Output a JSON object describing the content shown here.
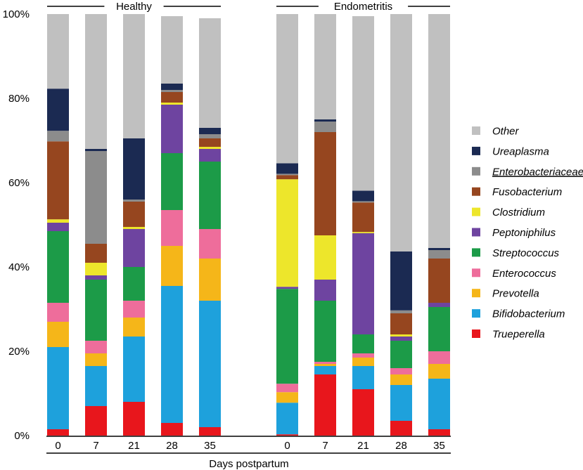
{
  "chart_data": {
    "type": "stacked-bar",
    "title": "",
    "xlabel": "Days postpartum",
    "ylabel": "",
    "ylim": [
      0,
      100
    ],
    "y_ticks": [
      "0%",
      "20%",
      "40%",
      "60%",
      "80%",
      "100%"
    ],
    "groups": [
      {
        "name": "Healthy",
        "categories": [
          "0",
          "7",
          "21",
          "28",
          "35"
        ]
      },
      {
        "name": "Endometritis",
        "categories": [
          "0",
          "7",
          "21",
          "28",
          "35"
        ]
      }
    ],
    "series": [
      {
        "name": "Trueperella",
        "color": "#e8161c",
        "values": [
          1.5,
          7,
          8,
          3,
          2,
          0.3,
          14.5,
          11,
          3.5,
          1.5
        ]
      },
      {
        "name": "Bifidobacterium",
        "color": "#1ea1dc",
        "values": [
          19.5,
          9.5,
          15.5,
          32.5,
          30,
          7.5,
          2,
          5.5,
          8.5,
          12
        ]
      },
      {
        "name": "Prevotella",
        "color": "#f5b619",
        "values": [
          6,
          3,
          4.5,
          9.5,
          10,
          2.5,
          0.5,
          2,
          2.5,
          3.5
        ]
      },
      {
        "name": "Enterococcus",
        "color": "#ee6d9b",
        "values": [
          4.5,
          3,
          4,
          8.5,
          7,
          2,
          0.5,
          1,
          1.5,
          3
        ]
      },
      {
        "name": "Streptococcus",
        "color": "#1c9b48",
        "values": [
          17,
          14.5,
          8,
          13.5,
          16,
          22.5,
          14.5,
          4.5,
          6.5,
          10.5
        ]
      },
      {
        "name": "Peptoniphilus",
        "color": "#6e44a0",
        "values": [
          2,
          1,
          9,
          11.5,
          3,
          0.5,
          5,
          24,
          1,
          1
        ]
      },
      {
        "name": "Clostridium",
        "color": "#ede62b",
        "values": [
          0.8,
          3,
          0.5,
          0.5,
          0.5,
          25.5,
          10.5,
          0.3,
          0.5,
          0
        ]
      },
      {
        "name": "Fusobacterium",
        "color": "#96461f",
        "values": [
          18.5,
          4.5,
          6,
          2.5,
          2,
          1,
          24.5,
          7,
          5,
          10.5
        ]
      },
      {
        "name": "Enterobacteriaceae",
        "color": "#8c8c8c",
        "values": [
          2.5,
          22,
          0.5,
          0.5,
          1,
          0.3,
          2.5,
          0.3,
          0.7,
          2
        ]
      },
      {
        "name": "Ureaplasma",
        "color": "#1b2a52",
        "values": [
          10,
          0.5,
          14.5,
          1.5,
          1.5,
          2.5,
          0.5,
          2.5,
          14,
          0.5
        ]
      },
      {
        "name": "Other",
        "color": "#c0c0c0",
        "values": [
          17.7,
          32,
          29.5,
          16,
          26,
          35.4,
          25,
          41.4,
          56.3,
          55.5
        ]
      }
    ],
    "legend_order": [
      "Other",
      "Ureaplasma",
      "Enterobacteriaceae",
      "Fusobacterium",
      "Clostridium",
      "Peptoniphilus",
      "Streptococcus",
      "Enterococcus",
      "Prevotella",
      "Bifidobacterium",
      "Trueperella"
    ],
    "legend_underlined": "Enterobacteriaceae",
    "legend_position": "right"
  }
}
